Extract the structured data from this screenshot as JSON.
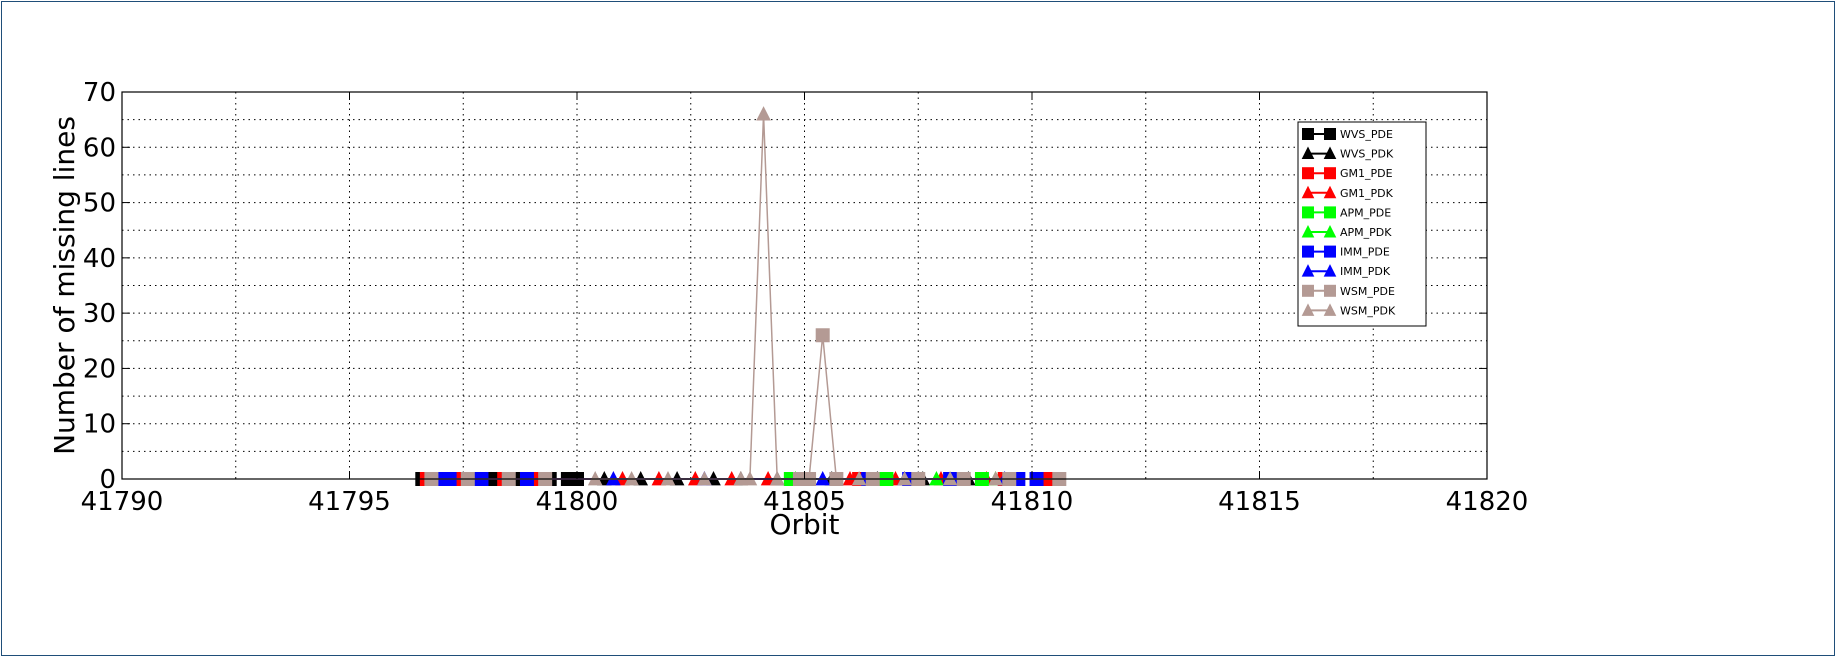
{
  "chart_data": {
    "type": "line",
    "title": "",
    "xlabel": "Orbit",
    "ylabel": "Number of missing lines",
    "xlim": [
      41790,
      41820
    ],
    "ylim": [
      0,
      70
    ],
    "xticks": [
      41790,
      41795,
      41800,
      41805,
      41810,
      41815,
      41820
    ],
    "yticks": [
      0,
      10,
      20,
      30,
      40,
      50,
      60,
      70
    ],
    "grid": true,
    "grid_style": "dotted",
    "legend_position": "top-right",
    "series": [
      {
        "name": "WVS_PDE",
        "color": "#000000",
        "marker": "square",
        "x": [
          41796.6,
          41797.0,
          41797.4,
          41797.8,
          41798.2,
          41798.6,
          41799.0,
          41799.4,
          41799.8,
          41800.0
        ],
        "y": [
          0,
          0,
          0,
          0,
          0,
          0,
          0,
          0,
          0,
          0
        ]
      },
      {
        "name": "WVS_PDK",
        "color": "#000000",
        "marker": "triangle",
        "x": [
          41800.6,
          41801.4,
          41802.2,
          41803.0,
          41803.6,
          41804.4,
          41805.6,
          41806.6,
          41807.6,
          41808.6
        ],
        "y": [
          0,
          0,
          0,
          0,
          0,
          0,
          0,
          0,
          0,
          0
        ]
      },
      {
        "name": "GM1_PDE",
        "color": "#ff0000",
        "marker": "square",
        "x": [
          41796.7,
          41797.5,
          41798.4,
          41799.2,
          41806.2,
          41807.4,
          41808.4,
          41809.4,
          41810.3
        ],
        "y": [
          0,
          0,
          0,
          0,
          0,
          0,
          0,
          0,
          0
        ]
      },
      {
        "name": "GM1_PDK",
        "color": "#ff0000",
        "marker": "triangle",
        "x": [
          41801.0,
          41801.8,
          41802.6,
          41803.4,
          41804.2,
          41806.0,
          41807.0,
          41808.0,
          41809.0
        ],
        "y": [
          0,
          0,
          0,
          0,
          0,
          0,
          0,
          0,
          0
        ]
      },
      {
        "name": "APM_PDE",
        "color": "#00ff00",
        "marker": "square",
        "x": [
          41804.7,
          41806.8,
          41808.9
        ],
        "y": [
          0,
          0,
          0
        ]
      },
      {
        "name": "APM_PDK",
        "color": "#00ff00",
        "marker": "triangle",
        "x": [
          41804.8,
          41807.9,
          41809.2
        ],
        "y": [
          0,
          0,
          0
        ]
      },
      {
        "name": "IMM_PDE",
        "color": "#0000ff",
        "marker": "square",
        "x": [
          41796.9,
          41797.2,
          41797.9,
          41798.9,
          41806.4,
          41807.3,
          41808.2,
          41809.7,
          41810.1
        ],
        "y": [
          0,
          0,
          0,
          0,
          0,
          0,
          0,
          0,
          0
        ]
      },
      {
        "name": "IMM_PDK",
        "color": "#0000ff",
        "marker": "triangle",
        "x": [
          41800.8,
          41802.8,
          41805.4,
          41807.2,
          41809.4
        ],
        "y": [
          0,
          0,
          0,
          0,
          0
        ]
      },
      {
        "name": "WSM_PDE",
        "color": "#b49a94",
        "marker": "square",
        "x": [
          41796.8,
          41797.6,
          41798.5,
          41799.3,
          41804.9,
          41805.1,
          41805.4,
          41805.7,
          41806.5,
          41807.5,
          41808.5,
          41809.5,
          41810.6
        ],
        "y": [
          0,
          0,
          0,
          0,
          0,
          0,
          26,
          0,
          0,
          0,
          0,
          0,
          0
        ]
      },
      {
        "name": "WSM_PDK",
        "color": "#b49a94",
        "marker": "triangle",
        "x": [
          41800.4,
          41801.2,
          41802.0,
          41802.8,
          41803.6,
          41803.8,
          41804.1,
          41804.4,
          41805.0,
          41806.2,
          41807.2,
          41808.2,
          41809.2
        ],
        "y": [
          0,
          0,
          0,
          0,
          0,
          0,
          66,
          0,
          0,
          0,
          0,
          0,
          0
        ]
      }
    ]
  }
}
